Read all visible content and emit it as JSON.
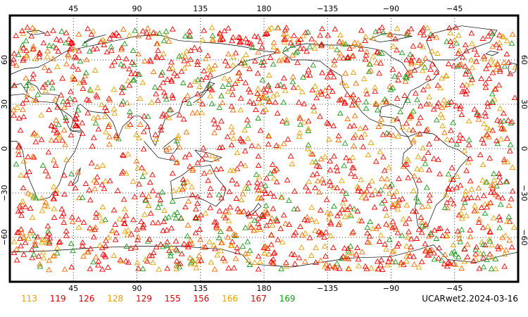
{
  "map": {
    "projection": "cylindrical",
    "top_lon_labels": [
      "45",
      "90",
      "135",
      "180",
      "−135",
      "−90",
      "−45"
    ],
    "bottom_lon_labels": [
      "45",
      "90",
      "135",
      "180",
      "−135",
      "−90",
      "−45"
    ],
    "left_lat_labels": [
      "60",
      "30",
      "0",
      "−30",
      "−60"
    ],
    "right_lat_labels": [
      "60",
      "30",
      "0",
      "−30",
      "−60"
    ],
    "marker_shape": "open triangle",
    "marker_colors": [
      "#ff0000",
      "#e5a000",
      "#1a9a1a",
      "#ff6a00"
    ],
    "gridlines": "dotted",
    "station_count_approx": 1900
  },
  "legend": {
    "items": [
      {
        "label": "113",
        "color": "#f0a000"
      },
      {
        "label": "119",
        "color": "#e00000"
      },
      {
        "label": "126",
        "color": "#e00000"
      },
      {
        "label": "128",
        "color": "#f0a000"
      },
      {
        "label": "129",
        "color": "#e00000"
      },
      {
        "label": "155",
        "color": "#e00000"
      },
      {
        "label": "156",
        "color": "#e00000"
      },
      {
        "label": "166",
        "color": "#f0a000"
      },
      {
        "label": "167",
        "color": "#e00000"
      },
      {
        "label": "169",
        "color": "#1a9a1a"
      }
    ]
  },
  "stamp": "UCARwet2.2024-03-16"
}
